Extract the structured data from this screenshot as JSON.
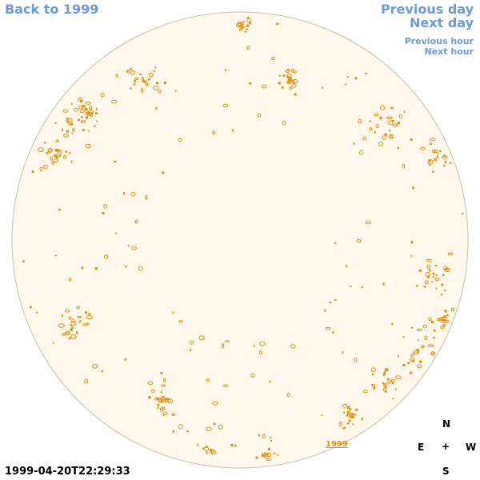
{
  "nav": {
    "back": "Back to 1999",
    "previous_day": "Previous day",
    "next_day": "Next day",
    "previous_hour": "Previous hour",
    "next_hour": "Next hour"
  },
  "timestamp": "1999-04-20T22:29:33",
  "year_marker": "1999",
  "compass": {
    "north": "N",
    "east": "E",
    "center": "+",
    "west": "W",
    "south": "S"
  },
  "colors": {
    "disk_fill": "#fef9ec",
    "disk_edge": "#c9bfae",
    "feature": "#f08c00",
    "link": "#6a9ae8"
  }
}
